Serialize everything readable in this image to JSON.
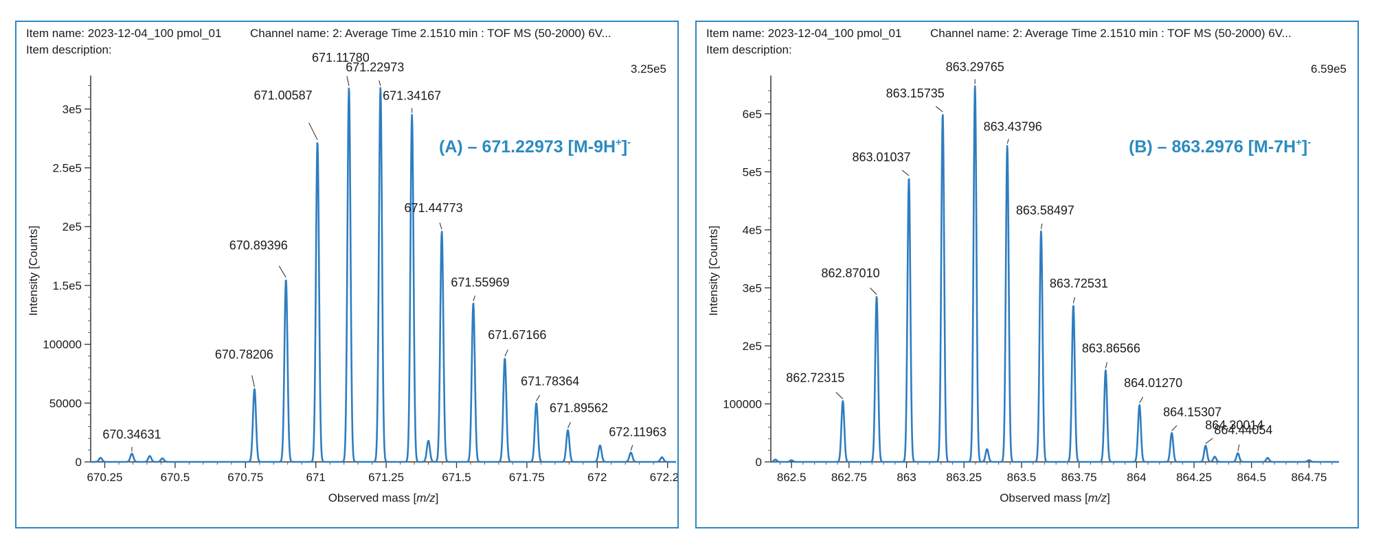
{
  "panels": [
    {
      "item_name_text": "Item name: 2023-12-04_100 pmol_01",
      "channel_name_text": "Channel name: 2: Average Time 2.1510 min : TOF MS (50-2000) 6V...",
      "item_description_text": "Item description:",
      "max_intensity": "3.25e5",
      "annotation": {
        "main": "(A) – 671.22973 [M-9H",
        "sup_plus": "+",
        "close": "]",
        "sup_minus": "-"
      }
    },
    {
      "item_name_text": "Item name: 2023-12-04_100 pmol_01",
      "channel_name_text": "Channel name: 2: Average Time 2.1510 min : TOF MS (50-2000) 6V...",
      "item_description_text": "Item description:",
      "max_intensity": "6.59e5",
      "annotation": {
        "main": "(B) – 863.2976 [M-7H",
        "sup_plus": "+",
        "close": "]",
        "sup_minus": "-"
      }
    }
  ],
  "chart_data": [
    {
      "type": "line",
      "xlabel": "Observed mass [m/z]",
      "ylabel": "Intensity [Counts]",
      "xlim": [
        670.2,
        672.28
      ],
      "ylim": [
        0,
        325000
      ],
      "x_ticks": [
        670.25,
        670.5,
        670.75,
        671,
        671.25,
        671.5,
        671.75,
        672,
        672.25
      ],
      "x_tick_labels": [
        "670.25",
        "670.5",
        "670.75",
        "671",
        "671.25",
        "671.5",
        "671.75",
        "672",
        "672.25"
      ],
      "y_ticks": [
        0,
        50000,
        100000,
        150000,
        200000,
        250000,
        300000
      ],
      "y_tick_labels": [
        "0",
        "50000",
        "100000",
        "1.5e5",
        "2e5",
        "2.5e5",
        "3e5"
      ],
      "peak_width": 0.0055,
      "line_color": "#2e7dc0",
      "series": [
        {
          "peaks": [
            {
              "x": 670.235,
              "y": 3500
            },
            {
              "x": 670.34631,
              "y": 7000,
              "label": "670.34631"
            },
            {
              "x": 670.41,
              "y": 5000
            },
            {
              "x": 670.455,
              "y": 3000
            },
            {
              "x": 670.78206,
              "y": 62000,
              "label": "670.78206"
            },
            {
              "x": 670.89396,
              "y": 155000,
              "label": "670.89396"
            },
            {
              "x": 671.00587,
              "y": 272000,
              "label": "671.00587"
            },
            {
              "x": 671.1178,
              "y": 318000,
              "label": "671.11780"
            },
            {
              "x": 671.22973,
              "y": 318000,
              "label": "671.22973"
            },
            {
              "x": 671.34167,
              "y": 295000,
              "label": "671.34167"
            },
            {
              "x": 671.4,
              "y": 18000
            },
            {
              "x": 671.44773,
              "y": 196000,
              "label": "671.44773"
            },
            {
              "x": 671.55969,
              "y": 135000,
              "label": "671.55969"
            },
            {
              "x": 671.67166,
              "y": 88000,
              "label": "671.67166"
            },
            {
              "x": 671.78364,
              "y": 50000,
              "label": "671.78364"
            },
            {
              "x": 671.89562,
              "y": 27000,
              "label": "671.89562"
            },
            {
              "x": 672.01,
              "y": 14000
            },
            {
              "x": 672.11963,
              "y": 8000,
              "label": "672.11963"
            },
            {
              "x": 672.23,
              "y": 4000
            }
          ]
        }
      ]
    },
    {
      "type": "line",
      "xlabel": "Observed mass [m/z]",
      "ylabel": "Intensity [Counts]",
      "xlim": [
        862.41,
        864.88
      ],
      "ylim": [
        0,
        659000
      ],
      "x_ticks": [
        862.5,
        862.75,
        863,
        863.25,
        863.5,
        863.75,
        864,
        864.25,
        864.5,
        864.75
      ],
      "x_tick_labels": [
        "862.5",
        "862.75",
        "863",
        "863.25",
        "863.5",
        "863.75",
        "864",
        "864.25",
        "864.5",
        "864.75"
      ],
      "y_ticks": [
        0,
        100000,
        200000,
        300000,
        400000,
        500000,
        600000
      ],
      "y_tick_labels": [
        "0",
        "100000",
        "2e5",
        "3e5",
        "4e5",
        "5e5",
        "6e5"
      ],
      "peak_width": 0.0063,
      "line_color": "#2e7dc0",
      "series": [
        {
          "peaks": [
            {
              "x": 862.43,
              "y": 4000
            },
            {
              "x": 862.5,
              "y": 3000
            },
            {
              "x": 862.72315,
              "y": 105000,
              "label": "862.72315"
            },
            {
              "x": 862.8701,
              "y": 285000,
              "label": "862.87010"
            },
            {
              "x": 863.01037,
              "y": 490000,
              "label": "863.01037"
            },
            {
              "x": 863.15735,
              "y": 600000,
              "label": "863.15735"
            },
            {
              "x": 863.29765,
              "y": 648000,
              "label": "863.29765"
            },
            {
              "x": 863.35,
              "y": 22000
            },
            {
              "x": 863.43796,
              "y": 545000,
              "label": "863.43796"
            },
            {
              "x": 863.58497,
              "y": 398000,
              "label": "863.58497"
            },
            {
              "x": 863.72531,
              "y": 270000,
              "label": "863.72531"
            },
            {
              "x": 863.86566,
              "y": 158000,
              "label": "863.86566"
            },
            {
              "x": 864.0127,
              "y": 98000,
              "label": "864.01270"
            },
            {
              "x": 864.15307,
              "y": 50000,
              "label": "864.15307"
            },
            {
              "x": 864.30014,
              "y": 28000,
              "label": "864.30014"
            },
            {
              "x": 864.34,
              "y": 9000
            },
            {
              "x": 864.44054,
              "y": 15000,
              "label": "864.44054"
            },
            {
              "x": 864.57,
              "y": 7000
            },
            {
              "x": 864.75,
              "y": 3000
            }
          ]
        }
      ]
    }
  ]
}
